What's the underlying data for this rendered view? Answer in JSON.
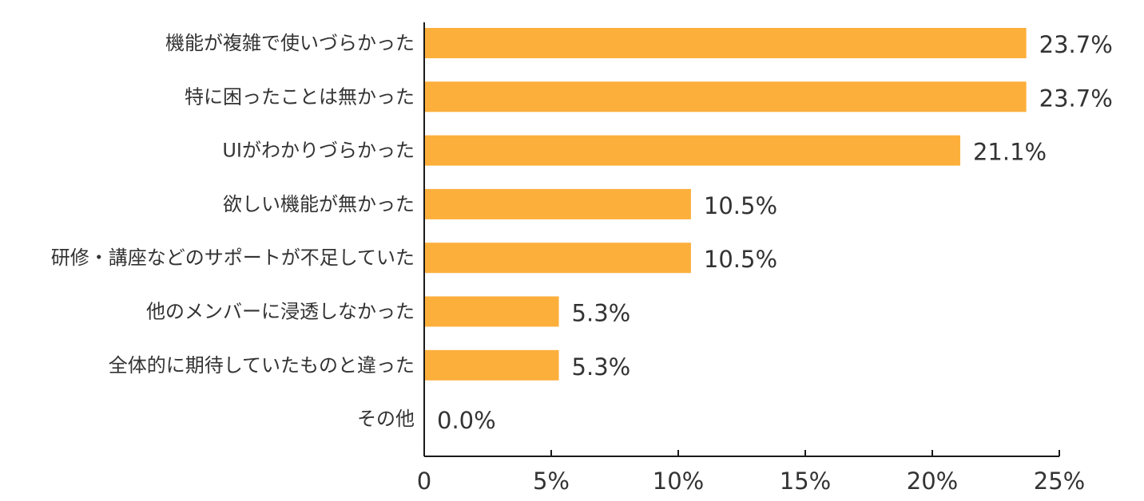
{
  "chart_data": {
    "type": "bar",
    "orientation": "horizontal",
    "categories": [
      "機能が複雑で使いづらかった",
      "特に困ったことは無かった",
      "UIがわかりづらかった",
      "欲しい機能が無かった",
      "研修・講座などのサポートが不足していた",
      "他のメンバーに浸透しなかった",
      "全体的に期待していたものと違った",
      "その他"
    ],
    "values": [
      23.7,
      23.7,
      21.1,
      10.5,
      10.5,
      5.3,
      5.3,
      0.0
    ],
    "value_labels": [
      "23.7%",
      "23.7%",
      "21.1%",
      "10.5%",
      "10.5%",
      "5.3%",
      "5.3%",
      "0.0%"
    ],
    "xticks": [
      0,
      5,
      10,
      15,
      20,
      25
    ],
    "xtick_labels": [
      "0",
      "5%",
      "10%",
      "15%",
      "20%",
      "25%"
    ],
    "xlim": [
      0,
      25
    ],
    "grid": false,
    "bar_color": "#FDAF3B",
    "axis_color": "#1a1a1a"
  }
}
